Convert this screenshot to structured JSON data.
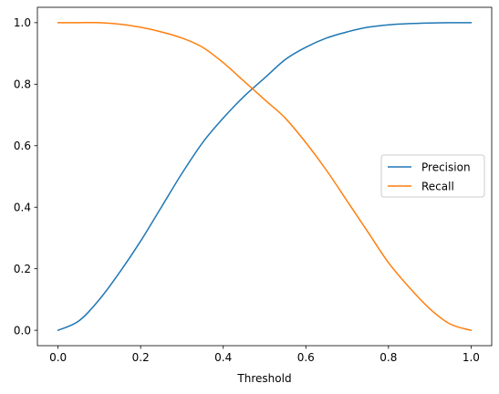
{
  "chart_data": {
    "type": "line",
    "title": "",
    "xlabel": "Threshold",
    "ylabel": "",
    "xlim": [
      -0.05,
      1.05
    ],
    "ylim": [
      -0.05,
      1.05
    ],
    "xticks": [
      0.0,
      0.2,
      0.4,
      0.6,
      0.8,
      1.0
    ],
    "yticks": [
      0.0,
      0.2,
      0.4,
      0.6,
      0.8,
      1.0
    ],
    "xtick_labels": [
      "0.0",
      "0.2",
      "0.4",
      "0.6",
      "0.8",
      "1.0"
    ],
    "ytick_labels": [
      "0.0",
      "0.2",
      "0.4",
      "0.6",
      "0.8",
      "1.0"
    ],
    "grid": false,
    "legend": "center-right",
    "x": [
      0.0,
      0.05,
      0.1,
      0.15,
      0.2,
      0.25,
      0.3,
      0.35,
      0.4,
      0.45,
      0.5,
      0.55,
      0.6,
      0.65,
      0.7,
      0.75,
      0.8,
      0.85,
      0.9,
      0.95,
      1.0
    ],
    "series": [
      {
        "name": "Precision",
        "color": "#1f77b4",
        "values": [
          0.0,
          0.03,
          0.1,
          0.19,
          0.29,
          0.4,
          0.51,
          0.61,
          0.69,
          0.76,
          0.82,
          0.88,
          0.92,
          0.95,
          0.97,
          0.985,
          0.993,
          0.997,
          0.999,
          1.0,
          1.0
        ]
      },
      {
        "name": "Recall",
        "color": "#ff7f0e",
        "values": [
          1.0,
          1.0,
          1.0,
          0.995,
          0.985,
          0.97,
          0.95,
          0.92,
          0.87,
          0.81,
          0.75,
          0.69,
          0.61,
          0.52,
          0.42,
          0.32,
          0.22,
          0.14,
          0.07,
          0.02,
          0.0
        ]
      }
    ]
  }
}
